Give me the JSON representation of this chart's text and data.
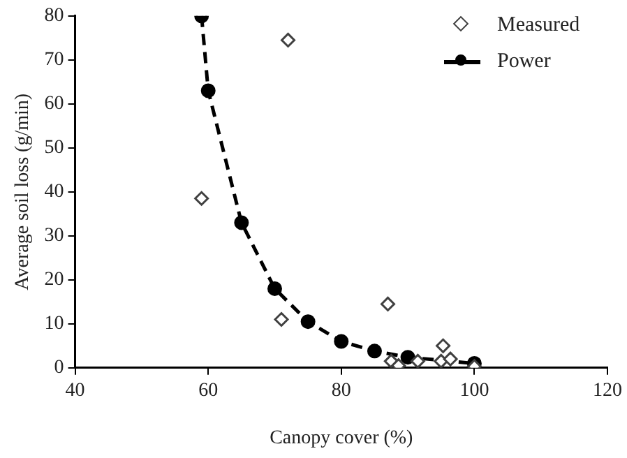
{
  "chart_data": {
    "type": "scatter",
    "xlabel": "Canopy cover (%)",
    "ylabel": "Average soil loss (g/min)",
    "xlim": [
      40,
      120
    ],
    "xticks": [
      40,
      60,
      80,
      100,
      120
    ],
    "ylim": [
      0,
      80
    ],
    "yticks": [
      0,
      10,
      20,
      30,
      40,
      50,
      60,
      70,
      80
    ],
    "grid": false,
    "legend": "top right",
    "series": [
      {
        "name": "Measured",
        "type": "scatter",
        "marker": "diamond",
        "color": "#404040",
        "x": [
          59,
          71,
          72,
          87,
          87.5,
          88.6,
          91.5,
          95,
          95.3,
          96.4,
          100
        ],
        "values": [
          38.5,
          11,
          74.5,
          14.5,
          1.5,
          0.5,
          1.5,
          1.5,
          5,
          2,
          0.3
        ]
      },
      {
        "name": "Power",
        "type": "line",
        "marker": "circle",
        "line_style": "dashed",
        "color": "#000000",
        "x": [
          59,
          60,
          65,
          70,
          75,
          80,
          85,
          90,
          100
        ],
        "values": [
          80,
          63,
          33,
          18,
          10.5,
          6,
          3.8,
          2.4,
          1
        ]
      }
    ]
  }
}
